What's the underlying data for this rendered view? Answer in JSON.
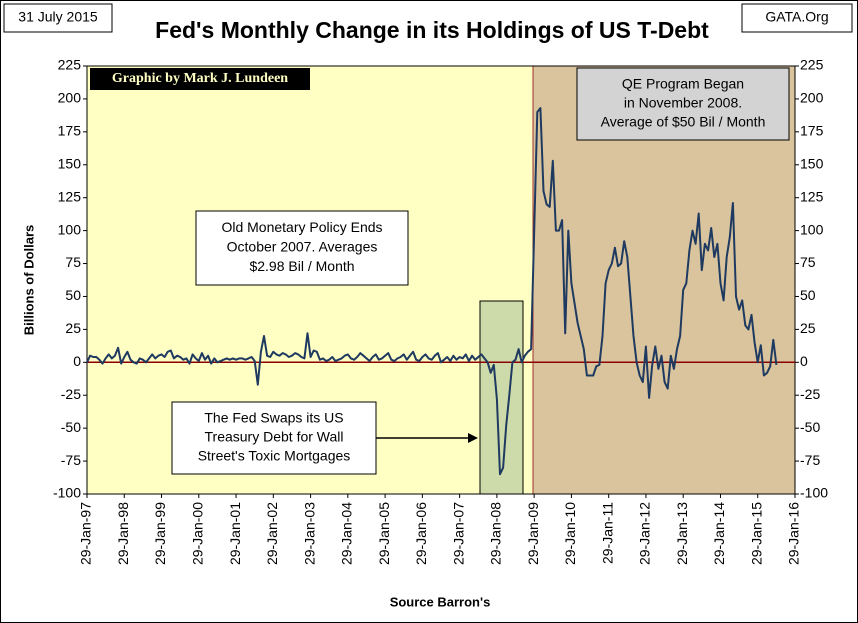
{
  "chart_data": {
    "type": "line",
    "title": "Fed's Monthly Change in its Holdings of US T-Debt",
    "date_note": "31 July 2015",
    "source_note": "GATA.Org",
    "credit": "Graphic by Mark J. Lundeen",
    "y_label": "Billions  of  Dollars",
    "x_label": "Source Barron's",
    "annotations": {
      "old_policy": [
        "Old Monetary Policy Ends",
        "October 2007.  Averages",
        "$2.98 Bil / Month"
      ],
      "swap": [
        "The Fed Swaps its US",
        "Treasury Debt for Wall",
        "Street's Toxic Mortgages"
      ],
      "qe": [
        "QE Program Began",
        "in November 2008.",
        "Average of $50 Bil / Month"
      ]
    },
    "color": "#1f3a60",
    "zero_line_color": "#8b0000",
    "xlim": [
      "1997-01",
      "2016-01"
    ],
    "xticks": [
      {
        "value": "1997-01",
        "label": "29-Jan-97"
      },
      {
        "value": "1998-01",
        "label": "29-Jan-98"
      },
      {
        "value": "1999-01",
        "label": "29-Jan-99"
      },
      {
        "value": "2000-01",
        "label": "29-Jan-00"
      },
      {
        "value": "2001-01",
        "label": "29-Jan-01"
      },
      {
        "value": "2002-01",
        "label": "29-Jan-02"
      },
      {
        "value": "2003-01",
        "label": "29-Jan-03"
      },
      {
        "value": "2004-01",
        "label": "29-Jan-04"
      },
      {
        "value": "2005-01",
        "label": "29-Jan-05"
      },
      {
        "value": "2006-01",
        "label": "29-Jan-06"
      },
      {
        "value": "2007-01",
        "label": "29-Jan-07"
      },
      {
        "value": "2008-01",
        "label": "29-Jan-08"
      },
      {
        "value": "2009-01",
        "label": "29-Jan-09"
      },
      {
        "value": "2010-01",
        "label": "29-Jan-10"
      },
      {
        "value": "2011-01",
        "label": "29-Jan-11"
      },
      {
        "value": "2012-01",
        "label": "29-Jan-12"
      },
      {
        "value": "2013-01",
        "label": "29-Jan-13"
      },
      {
        "value": "2014-01",
        "label": "29-Jan-14"
      },
      {
        "value": "2015-01",
        "label": "29-Jan-15"
      },
      {
        "value": "2016-01",
        "label": "29-Jan-16"
      }
    ],
    "ylim": [
      -100,
      225
    ],
    "yticks": [
      -100,
      -75,
      -50,
      -25,
      0,
      25,
      50,
      75,
      100,
      125,
      150,
      175,
      200,
      225
    ],
    "x": [
      "1997-01",
      "1997-02",
      "1997-03",
      "1997-04",
      "1997-05",
      "1997-06",
      "1997-07",
      "1997-08",
      "1997-09",
      "1997-10",
      "1997-11",
      "1997-12",
      "1998-01",
      "1998-02",
      "1998-03",
      "1998-04",
      "1998-05",
      "1998-06",
      "1998-07",
      "1998-08",
      "1998-09",
      "1998-10",
      "1998-11",
      "1998-12",
      "1999-01",
      "1999-02",
      "1999-03",
      "1999-04",
      "1999-05",
      "1999-06",
      "1999-07",
      "1999-08",
      "1999-09",
      "1999-10",
      "1999-11",
      "1999-12",
      "2000-01",
      "2000-02",
      "2000-03",
      "2000-04",
      "2000-05",
      "2000-06",
      "2000-07",
      "2000-08",
      "2000-09",
      "2000-10",
      "2000-11",
      "2000-12",
      "2001-01",
      "2001-02",
      "2001-03",
      "2001-04",
      "2001-05",
      "2001-06",
      "2001-07",
      "2001-08",
      "2001-09",
      "2001-10",
      "2001-11",
      "2001-12",
      "2002-01",
      "2002-02",
      "2002-03",
      "2002-04",
      "2002-05",
      "2002-06",
      "2002-07",
      "2002-08",
      "2002-09",
      "2002-10",
      "2002-11",
      "2002-12",
      "2003-01",
      "2003-02",
      "2003-03",
      "2003-04",
      "2003-05",
      "2003-06",
      "2003-07",
      "2003-08",
      "2003-09",
      "2003-10",
      "2003-11",
      "2003-12",
      "2004-01",
      "2004-02",
      "2004-03",
      "2004-04",
      "2004-05",
      "2004-06",
      "2004-07",
      "2004-08",
      "2004-09",
      "2004-10",
      "2004-11",
      "2004-12",
      "2005-01",
      "2005-02",
      "2005-03",
      "2005-04",
      "2005-05",
      "2005-06",
      "2005-07",
      "2005-08",
      "2005-09",
      "2005-10",
      "2005-11",
      "2005-12",
      "2006-01",
      "2006-02",
      "2006-03",
      "2006-04",
      "2006-05",
      "2006-06",
      "2006-07",
      "2006-08",
      "2006-09",
      "2006-10",
      "2006-11",
      "2006-12",
      "2007-01",
      "2007-02",
      "2007-03",
      "2007-04",
      "2007-05",
      "2007-06",
      "2007-07",
      "2007-08",
      "2007-09",
      "2007-10",
      "2007-11",
      "2007-12",
      "2008-01",
      "2008-02",
      "2008-03",
      "2008-04",
      "2008-05",
      "2008-06",
      "2008-07",
      "2008-08",
      "2008-09",
      "2008-10",
      "2008-11",
      "2008-12",
      "2009-01",
      "2009-02",
      "2009-03",
      "2009-04",
      "2009-05",
      "2009-06",
      "2009-07",
      "2009-08",
      "2009-09",
      "2009-10",
      "2009-11",
      "2009-12",
      "2010-01",
      "2010-02",
      "2010-03",
      "2010-04",
      "2010-05",
      "2010-06",
      "2010-07",
      "2010-08",
      "2010-09",
      "2010-10",
      "2010-11",
      "2010-12",
      "2011-01",
      "2011-02",
      "2011-03",
      "2011-04",
      "2011-05",
      "2011-06",
      "2011-07",
      "2011-08",
      "2011-09",
      "2011-10",
      "2011-11",
      "2011-12",
      "2012-01",
      "2012-02",
      "2012-03",
      "2012-04",
      "2012-05",
      "2012-06",
      "2012-07",
      "2012-08",
      "2012-09",
      "2012-10",
      "2012-11",
      "2012-12",
      "2013-01",
      "2013-02",
      "2013-03",
      "2013-04",
      "2013-05",
      "2013-06",
      "2013-07",
      "2013-08",
      "2013-09",
      "2013-10",
      "2013-11",
      "2013-12",
      "2014-01",
      "2014-02",
      "2014-03",
      "2014-04",
      "2014-05",
      "2014-06",
      "2014-07",
      "2014-08",
      "2014-09",
      "2014-10",
      "2014-11",
      "2014-12",
      "2015-01",
      "2015-02",
      "2015-03",
      "2015-04",
      "2015-05",
      "2015-06",
      "2015-07"
    ],
    "values": [
      0,
      5,
      4,
      4,
      2,
      -1,
      3,
      6,
      3,
      5,
      11,
      -1,
      4,
      8,
      2,
      0,
      -1,
      3,
      2,
      0,
      3,
      6,
      3,
      5,
      6,
      4,
      8,
      9,
      3,
      5,
      4,
      2,
      3,
      -1,
      6,
      3,
      1,
      7,
      2,
      5,
      -1,
      3,
      0,
      1,
      2,
      3,
      2,
      3,
      2,
      3,
      3,
      2,
      3,
      4,
      1,
      -17,
      8,
      20,
      5,
      4,
      8,
      6,
      5,
      7,
      6,
      4,
      5,
      7,
      6,
      4,
      3,
      22,
      4,
      9,
      8,
      2,
      3,
      1,
      2,
      4,
      1,
      2,
      3,
      5,
      6,
      3,
      2,
      4,
      7,
      5,
      3,
      1,
      4,
      6,
      2,
      3,
      5,
      7,
      2,
      1,
      3,
      4,
      6,
      2,
      5,
      8,
      2,
      1,
      4,
      6,
      3,
      2,
      5,
      7,
      0,
      2,
      4,
      1,
      5,
      2,
      4,
      3,
      6,
      1,
      5,
      2,
      4,
      6,
      3,
      0,
      -8,
      -2,
      -28,
      -85,
      -80,
      -48,
      -25,
      0,
      2,
      10,
      0,
      5,
      8,
      10,
      100,
      190,
      193,
      130,
      120,
      118,
      153,
      100,
      100,
      108,
      22,
      100,
      60,
      45,
      30,
      20,
      10,
      -10,
      -10,
      -10,
      -3,
      -2,
      20,
      60,
      70,
      75,
      87,
      73,
      75,
      92,
      80,
      50,
      20,
      0,
      -10,
      -15,
      12,
      -27,
      -2,
      12,
      -5,
      5,
      -15,
      -20,
      5,
      -5,
      10,
      20,
      55,
      60,
      85,
      100,
      90,
      113,
      70,
      90,
      85,
      102,
      80,
      90,
      60,
      47,
      80,
      95,
      121,
      50,
      40,
      47,
      28,
      25,
      36,
      15,
      0,
      13,
      -10,
      -8,
      -3,
      17,
      -2
    ]
  }
}
